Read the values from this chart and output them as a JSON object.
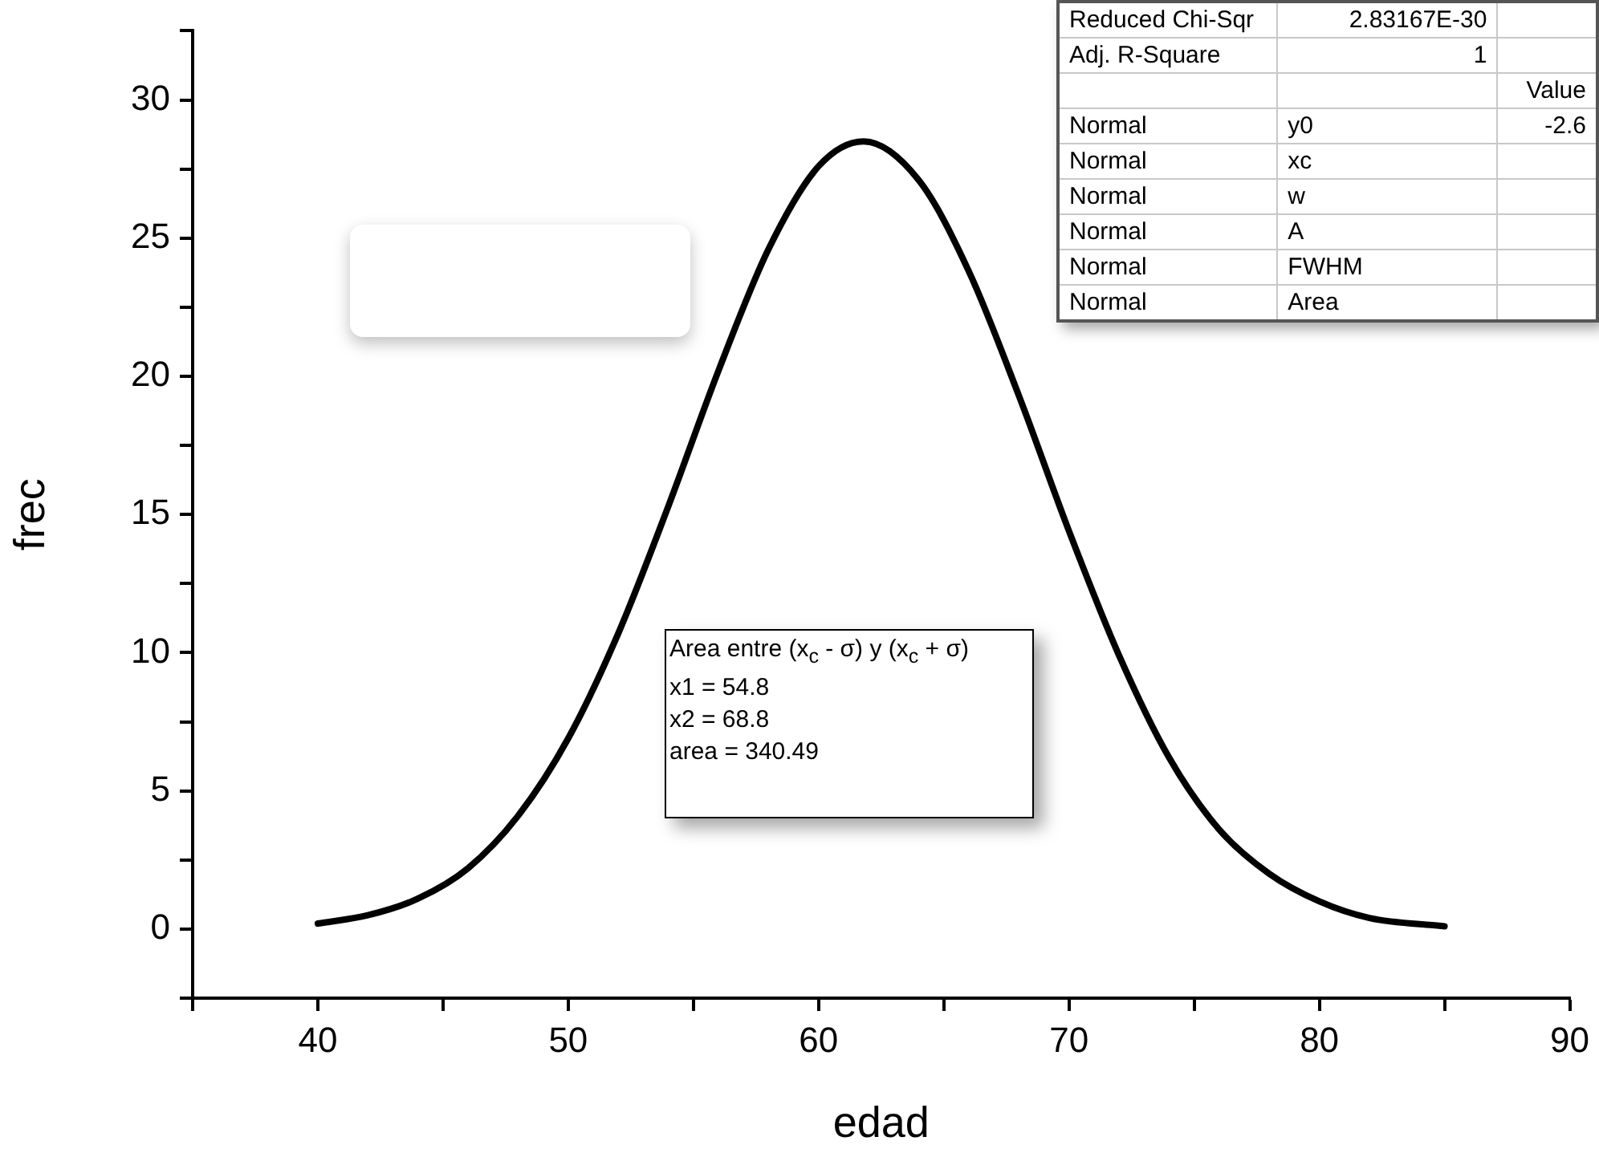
{
  "chart_data": {
    "type": "line",
    "xlabel": "edad",
    "ylabel": "frec",
    "x": [
      40,
      42,
      44,
      46,
      48,
      50,
      52,
      54,
      56,
      58,
      60,
      61.8,
      64,
      66,
      68,
      70,
      72,
      74,
      76,
      78,
      80,
      82,
      85
    ],
    "series": [
      {
        "color": "#000000",
        "values": [
          0.2,
          0.5,
          1.1,
          2.2,
          4.1,
          6.9,
          10.7,
          15.3,
          20.2,
          24.6,
          27.6,
          28.5,
          27.1,
          23.8,
          19.3,
          14.4,
          9.9,
          6.2,
          3.6,
          2.0,
          1.0,
          0.4,
          0.1
        ]
      }
    ],
    "xlim": [
      35,
      90
    ],
    "xticks": [
      {
        "value": 35,
        "label": null
      },
      40,
      {
        "value": 45,
        "label": null
      },
      50,
      {
        "value": 55,
        "label": null
      },
      60,
      {
        "value": 65,
        "label": null
      },
      70,
      {
        "value": 75,
        "label": null
      },
      80,
      {
        "value": 85,
        "label": null
      },
      90
    ],
    "ylim": [
      -2.5,
      32.5
    ],
    "yticks": [
      {
        "value": -2.5,
        "label": null
      },
      0,
      {
        "value": 2.5,
        "label": null
      },
      5,
      {
        "value": 7.5,
        "label": null
      },
      10,
      {
        "value": 12.5,
        "label": null
      },
      15,
      {
        "value": 17.5,
        "label": null
      },
      20,
      {
        "value": 22.5,
        "label": null
      },
      25,
      {
        "value": 27.5,
        "label": null
      },
      30,
      {
        "value": 32.5,
        "label": null
      }
    ],
    "marker": "none",
    "line_style": "solid",
    "annotations": [
      "Reduced Chi-Sqr",
      "2.83167E-30",
      "Adj. R-Square",
      "1",
      "Value",
      "Normal",
      "y0",
      "-2.6",
      "Normal",
      "xc",
      "Normal",
      "w",
      "Normal",
      "A",
      "Normal",
      "FWHM",
      "Normal",
      "Area",
      "Area entre (x$_{c}$ - σ) y (x$_{c}$ + σ)",
      "x1 = 54.8",
      "x2 = 68.8",
      "area = 340.49"
    ]
  }
}
